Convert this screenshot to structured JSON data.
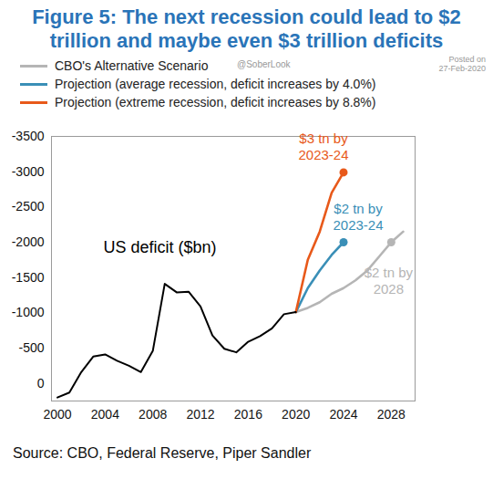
{
  "chart_data": {
    "type": "line",
    "title": "Figure 5: The next recession could lead to $2 trillion and maybe even $3 trillion deficits",
    "watermark": [
      "Posted on",
      "27-Feb-2020",
      "@SoberLook"
    ],
    "y_label": "US deficit ($bn)",
    "source": "Source: CBO, Federal Reserve, Piper Sandler",
    "xlim": [
      1999.5,
      2030
    ],
    "xticks": [
      2000,
      2004,
      2008,
      2012,
      2016,
      2020,
      2024,
      2028
    ],
    "ylim": [
      250,
      -3500
    ],
    "yticks": [
      0,
      -500,
      -1000,
      -1500,
      -2000,
      -2500,
      -3000,
      -3500
    ],
    "grid": false,
    "legend": "top-left",
    "series": [
      {
        "name": "CBO's Alternative Scenario",
        "color": "#b5b5b5",
        "x": [
          2020,
          2021,
          2022,
          2023,
          2024,
          2025,
          2026,
          2027,
          2028,
          2029
        ],
        "values": [
          -1010,
          -1070,
          -1150,
          -1270,
          -1350,
          -1460,
          -1600,
          -1800,
          -2000,
          -2150
        ]
      },
      {
        "name": "Projection (average recession, deficit increases by 4.0%)",
        "color": "#3a8fb7",
        "x": [
          2020,
          2021,
          2022,
          2023,
          2024
        ],
        "values": [
          -1010,
          -1350,
          -1600,
          -1820,
          -2000
        ]
      },
      {
        "name": "Projection (extreme recession, deficit increases by 8.8%)",
        "color": "#e8591a",
        "x": [
          2020,
          2021,
          2022,
          2023,
          2024
        ],
        "values": [
          -1010,
          -1750,
          -2150,
          -2700,
          -2990
        ]
      },
      {
        "name": null,
        "color": "#000000",
        "x": [
          2000,
          2001,
          2002,
          2003,
          2004,
          2005,
          2006,
          2007,
          2008,
          2009,
          2010,
          2011,
          2012,
          2013,
          2014,
          2015,
          2016,
          2017,
          2018,
          2019,
          2020
        ],
        "values": [
          200,
          130,
          -160,
          -380,
          -410,
          -320,
          -250,
          -160,
          -460,
          -1410,
          -1290,
          -1300,
          -1090,
          -680,
          -490,
          -440,
          -590,
          -670,
          -780,
          -980,
          -1010
        ]
      }
    ],
    "annotations": [
      {
        "text": "$3 tn by\n2023-24",
        "x": 2024,
        "y": -2990,
        "color": "#e8591a"
      },
      {
        "text": "$2 tn by\n2023-24",
        "x": 2024,
        "y": -2000,
        "color": "#3a8fb7"
      },
      {
        "text": "$2 tn by\n2028",
        "x": 2028,
        "y": -2000,
        "color": "#b5b5b5"
      }
    ]
  }
}
